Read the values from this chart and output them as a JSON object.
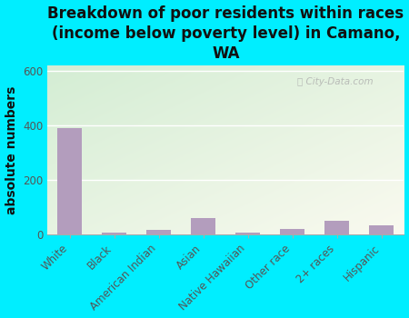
{
  "title": "Breakdown of poor residents within races\n(income below poverty level) in Camano,\nWA",
  "ylabel": "absolute numbers",
  "categories": [
    "White",
    "Black",
    "American Indian",
    "Asian",
    "Native Hawaiian",
    "Other race",
    "2+ races",
    "Hispanic"
  ],
  "values": [
    390,
    5,
    15,
    60,
    5,
    20,
    50,
    35
  ],
  "bar_color": "#b39dbd",
  "ylim": [
    0,
    620
  ],
  "yticks": [
    0,
    200,
    400,
    600
  ],
  "background_color": "#00eeff",
  "plot_bg_color_top_left": "#d4edda",
  "plot_bg_color_bottom_right": "#f5f5f0",
  "watermark": "City-Data.com",
  "title_fontsize": 12,
  "ylabel_fontsize": 10,
  "tick_fontsize": 8.5,
  "title_color": "#111111",
  "tick_color": "#555555"
}
